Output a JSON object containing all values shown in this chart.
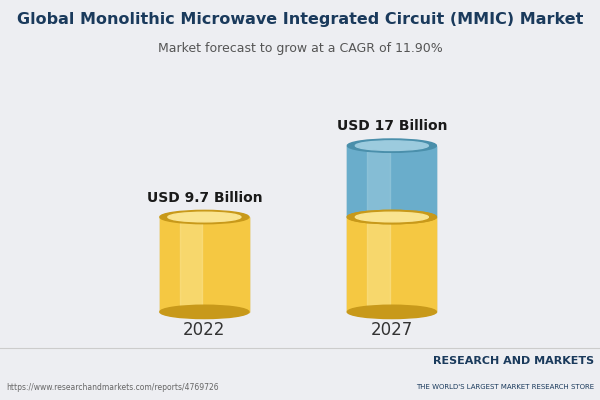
{
  "title": "Global Monolithic Microwave Integrated Circuit (MMIC) Market",
  "subtitle": "Market forecast to grow at a CAGR of 11.90%",
  "years": [
    "2022",
    "2027"
  ],
  "values": [
    9.7,
    17.0
  ],
  "labels": [
    "USD 9.7 Billion",
    "USD 17 Billion"
  ],
  "bar1_base_color": "#F5C842",
  "bar1_highlight_color": "#FAE490",
  "bar1_dark_color": "#C8991A",
  "bar2_base_color": "#6AADCB",
  "bar2_highlight_color": "#9CCBDE",
  "bar2_dark_color": "#4A8FAB",
  "bar2_yellow_color": "#F5C842",
  "background_color": "#EDEEF2",
  "title_color": "#1A3A5C",
  "subtitle_color": "#555555",
  "url_text": "https://www.researchandmarkets.com/reports/4769726",
  "brand_line1": "RESEARCH AND MARKETS",
  "brand_line2": "THE WORLD'S LARGEST MARKET RESEARCH STORE",
  "brand_color": "#1A3A5C"
}
